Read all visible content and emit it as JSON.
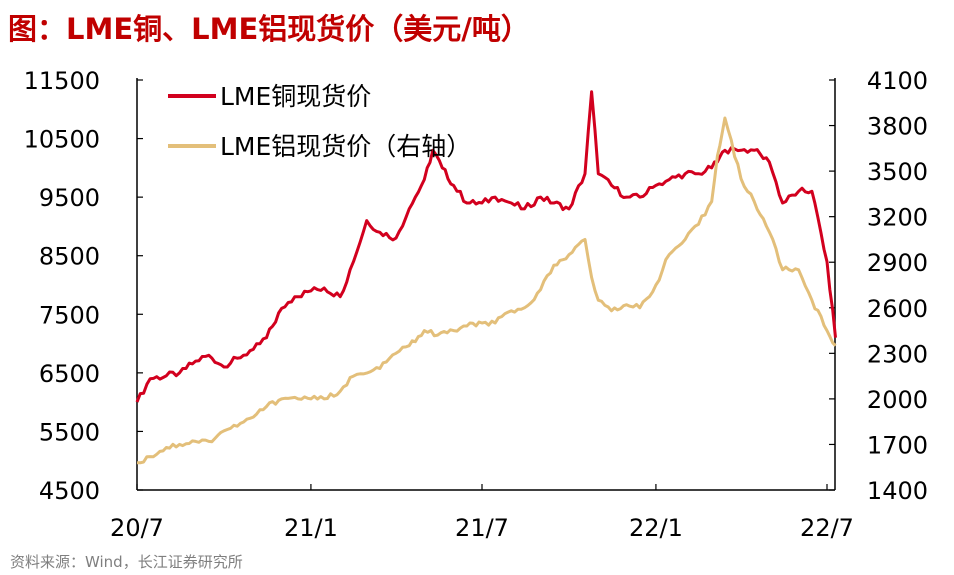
{
  "title": "图：LME铜、LME铝现货价（美元/吨）",
  "source": "资料来源：Wind，长江证券研究所",
  "chart_data": {
    "type": "line",
    "x_categories": [
      "20/7",
      "21/1",
      "21/7",
      "22/1",
      "22/7"
    ],
    "y_left": {
      "ticks": [
        "11500",
        "10500",
        "9500",
        "8500",
        "7500",
        "6500",
        "5500",
        "4500"
      ],
      "range": [
        4500,
        11500
      ]
    },
    "y_right": {
      "ticks": [
        "4100",
        "3800",
        "3500",
        "3200",
        "2900",
        "2600",
        "2300",
        "2000",
        "1700",
        "1400"
      ],
      "range": [
        1400,
        4100
      ]
    },
    "legend_position": "top-left",
    "series": [
      {
        "name": "LME铜现货价",
        "axis": "left",
        "color": "#d2001e",
        "x": [
          "2020-07-01",
          "2020-07-15",
          "2020-08-01",
          "2020-08-15",
          "2020-09-01",
          "2020-09-15",
          "2020-10-01",
          "2020-10-15",
          "2020-11-01",
          "2020-11-15",
          "2020-12-01",
          "2020-12-15",
          "2021-01-01",
          "2021-01-15",
          "2021-02-01",
          "2021-02-15",
          "2021-03-01",
          "2021-03-15",
          "2021-04-01",
          "2021-04-15",
          "2021-05-01",
          "2021-05-10",
          "2021-05-20",
          "2021-06-01",
          "2021-06-15",
          "2021-07-01",
          "2021-07-15",
          "2021-08-01",
          "2021-08-15",
          "2021-09-01",
          "2021-09-15",
          "2021-10-01",
          "2021-10-18",
          "2021-10-25",
          "2021-11-01",
          "2021-11-15",
          "2021-12-01",
          "2021-12-15",
          "2022-01-01",
          "2022-01-15",
          "2022-02-01",
          "2022-02-15",
          "2022-03-01",
          "2022-03-07",
          "2022-03-15",
          "2022-04-01",
          "2022-04-15",
          "2022-05-01",
          "2022-05-15",
          "2022-06-01",
          "2022-06-15",
          "2022-07-01",
          "2022-07-10"
        ],
        "values": [
          6000,
          6400,
          6450,
          6500,
          6700,
          6800,
          6600,
          6750,
          6900,
          7100,
          7600,
          7800,
          7900,
          7950,
          7800,
          8400,
          9100,
          8900,
          8800,
          9300,
          9800,
          10300,
          10000,
          9700,
          9400,
          9400,
          9500,
          9400,
          9300,
          9500,
          9400,
          9300,
          9900,
          11300,
          9900,
          9700,
          9500,
          9500,
          9700,
          9800,
          9900,
          9900,
          10000,
          10100,
          10300,
          10300,
          10300,
          10100,
          9400,
          9600,
          9600,
          8400,
          7100
        ]
      },
      {
        "name": "LME铝现货价（右轴）",
        "axis": "right",
        "color": "#e3bf7a",
        "x": [
          "2020-07-01",
          "2020-07-15",
          "2020-08-01",
          "2020-08-15",
          "2020-09-01",
          "2020-09-15",
          "2020-10-01",
          "2020-10-15",
          "2020-11-01",
          "2020-11-15",
          "2020-12-01",
          "2020-12-15",
          "2021-01-01",
          "2021-01-15",
          "2021-02-01",
          "2021-02-15",
          "2021-03-01",
          "2021-03-15",
          "2021-04-01",
          "2021-04-15",
          "2021-05-01",
          "2021-05-15",
          "2021-06-01",
          "2021-06-15",
          "2021-07-01",
          "2021-07-15",
          "2021-08-01",
          "2021-08-15",
          "2021-09-01",
          "2021-09-15",
          "2021-10-01",
          "2021-10-18",
          "2021-10-25",
          "2021-11-01",
          "2021-11-15",
          "2021-12-01",
          "2021-12-15",
          "2022-01-01",
          "2022-01-15",
          "2022-02-01",
          "2022-02-15",
          "2022-03-01",
          "2022-03-07",
          "2022-03-15",
          "2022-04-01",
          "2022-04-15",
          "2022-05-01",
          "2022-05-15",
          "2022-06-01",
          "2022-06-15",
          "2022-07-01",
          "2022-07-10"
        ],
        "values": [
          1580,
          1620,
          1680,
          1700,
          1720,
          1720,
          1790,
          1820,
          1880,
          1950,
          2000,
          2010,
          2000,
          2000,
          2050,
          2150,
          2170,
          2200,
          2300,
          2350,
          2450,
          2420,
          2450,
          2480,
          2500,
          2500,
          2580,
          2600,
          2720,
          2880,
          2950,
          3050,
          2800,
          2650,
          2580,
          2620,
          2600,
          2750,
          2950,
          3050,
          3150,
          3300,
          3600,
          3850,
          3450,
          3300,
          3100,
          2850,
          2850,
          2650,
          2450,
          2350
        ]
      }
    ]
  }
}
